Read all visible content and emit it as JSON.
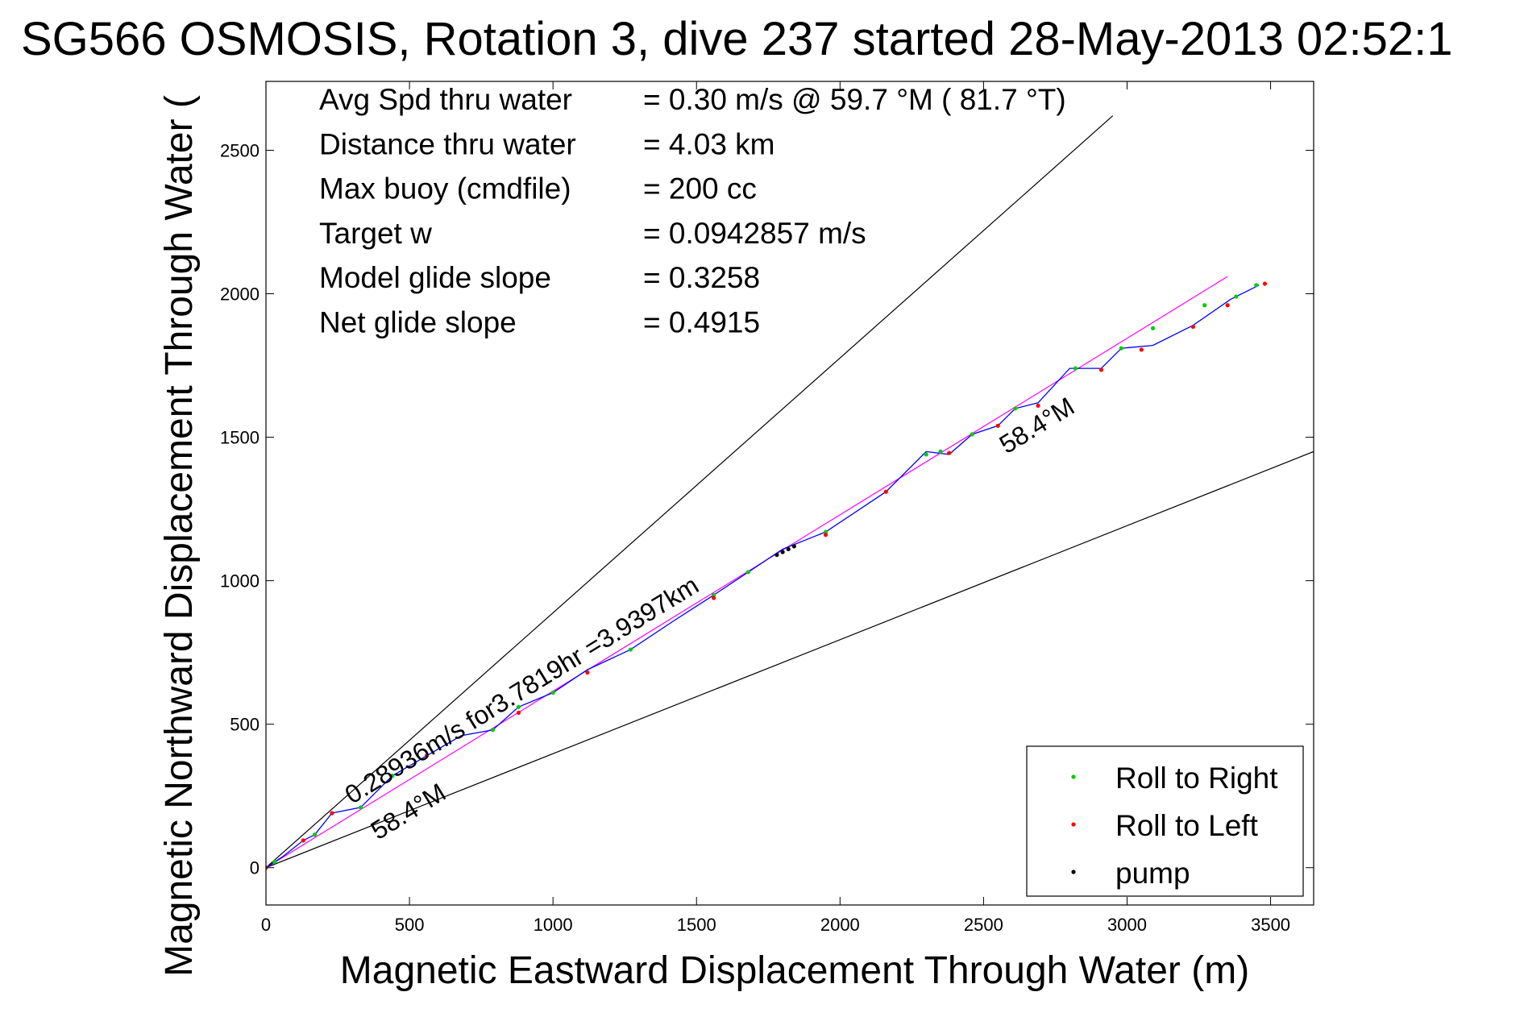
{
  "chart_data": {
    "type": "line",
    "title": "SG566 OSMOSIS, Rotation 3, dive 237 started 28-May-2013 02:52:1",
    "xlabel": "Magnetic Eastward Displacement Through Water (m)",
    "ylabel": "Magnetic Northward Displacement Through Water (",
    "xlim": [
      0,
      3650
    ],
    "ylim": [
      -130,
      2740
    ],
    "x_ticks": [
      0,
      500,
      1000,
      1500,
      2000,
      2500,
      3000,
      3500
    ],
    "y_ticks": [
      0,
      500,
      1000,
      1500,
      2000,
      2500
    ],
    "grid": false,
    "info_rows": [
      {
        "label": "Avg Spd thru water",
        "value": "=  0.30 m/s @  59.7 °M ( 81.7 °T)"
      },
      {
        "label": "Distance thru water",
        "value": "=  4.03 km"
      },
      {
        "label": "Max buoy (cmdfile)",
        "value": "= 200 cc"
      },
      {
        "label": "Target w",
        "value": "= 0.0942857 m/s"
      },
      {
        "label": "Model glide slope",
        "value": "= 0.3258"
      },
      {
        "label": "Net glide slope",
        "value": "= 0.4915"
      }
    ],
    "annotations": [
      {
        "text": "0.28936m/s for3.7819hr =3.9397km",
        "x": 300,
        "y": 220,
        "angle_deg": 31.6
      },
      {
        "text": "58.4°M",
        "x": 390,
        "y": 95,
        "angle_deg": 31.6
      },
      {
        "text": "58.4°M",
        "x": 2580,
        "y": 1440,
        "angle_deg": 31.6
      }
    ],
    "envelope_lines": [
      {
        "name": "upper",
        "x": [
          0,
          2950
        ],
        "y": [
          0,
          2620
        ]
      },
      {
        "name": "lower",
        "x": [
          0,
          3650
        ],
        "y": [
          0,
          1450
        ]
      }
    ],
    "heading_line": {
      "x": [
        0,
        3350
      ],
      "y": [
        0,
        2060
      ]
    },
    "track": {
      "x": [
        0,
        60,
        130,
        170,
        230,
        330,
        440,
        560,
        680,
        790,
        880,
        1000,
        1120,
        1270,
        1420,
        1560,
        1680,
        1800,
        1950,
        2160,
        2300,
        2380,
        2460,
        2550,
        2610,
        2690,
        2800,
        2910,
        2980,
        3090,
        3230,
        3360,
        3460
      ],
      "y": [
        0,
        40,
        95,
        115,
        190,
        210,
        320,
        390,
        460,
        480,
        560,
        610,
        690,
        760,
        860,
        950,
        1030,
        1110,
        1170,
        1310,
        1450,
        1440,
        1510,
        1540,
        1600,
        1620,
        1740,
        1740,
        1810,
        1820,
        1890,
        1980,
        2030
      ]
    },
    "roll_right": {
      "x": [
        30,
        170,
        330,
        440,
        790,
        880,
        1000,
        1270,
        1560,
        1680,
        1950,
        2300,
        2350,
        2460,
        2610,
        2820,
        2980,
        3090,
        3270,
        3380,
        3450
      ],
      "y": [
        20,
        115,
        210,
        320,
        480,
        560,
        610,
        760,
        950,
        1030,
        1170,
        1440,
        1450,
        1510,
        1600,
        1740,
        1810,
        1880,
        1960,
        1990,
        2030
      ]
    },
    "roll_left": {
      "x": [
        0,
        130,
        230,
        560,
        880,
        1120,
        1560,
        1950,
        2160,
        2380,
        2550,
        2690,
        2910,
        3050,
        3230,
        3350,
        3480
      ],
      "y": [
        0,
        95,
        190,
        390,
        540,
        680,
        940,
        1160,
        1310,
        1445,
        1540,
        1610,
        1735,
        1805,
        1885,
        1960,
        2035
      ]
    },
    "pump": {
      "x": [
        1780,
        1800,
        1820,
        1840
      ],
      "y": [
        1090,
        1100,
        1110,
        1120
      ]
    },
    "legend": {
      "placement": "bottom-right",
      "entries": [
        {
          "label": "Roll to Right",
          "color": "#00cc00"
        },
        {
          "label": "Roll to Left",
          "color": "#ff0000"
        },
        {
          "label": "pump",
          "color": "#000000"
        }
      ]
    },
    "colors": {
      "track": "#0000ff",
      "heading_line": "#ff00ff",
      "envelope": "#000000"
    }
  }
}
